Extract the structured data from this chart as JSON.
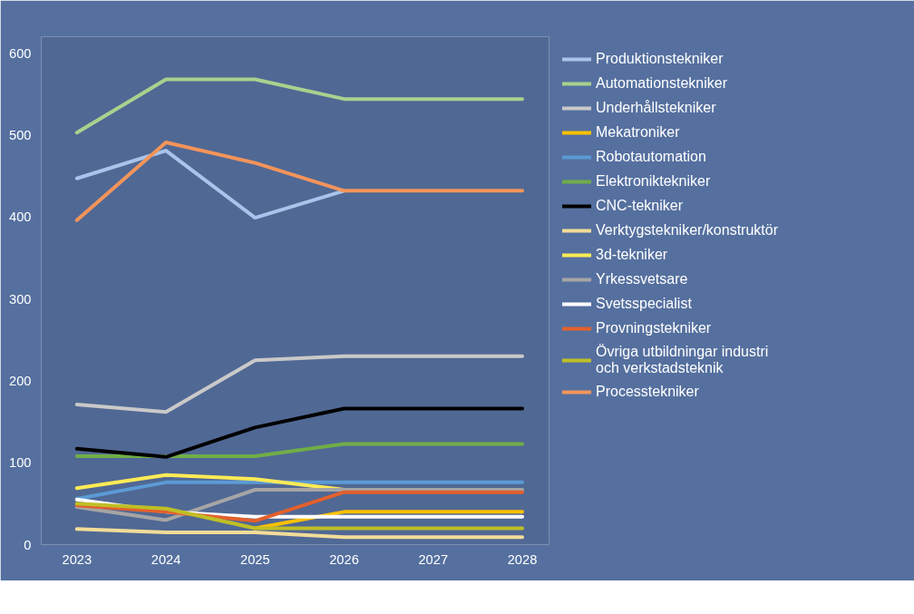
{
  "chart_data": {
    "type": "line",
    "x": [
      2023,
      2024,
      2025,
      2026,
      2027,
      2028
    ],
    "xlim": [
      2022.6,
      2028.3
    ],
    "xticks": [
      2023,
      2024,
      2025,
      2026,
      2027,
      2028
    ],
    "ylim": [
      0,
      620
    ],
    "yticks": [
      0,
      100,
      200,
      300,
      400,
      500,
      600
    ],
    "grid": false,
    "legend": "right",
    "marker": "none",
    "line_style": "solid",
    "series": [
      {
        "name": "Produktionstekniker",
        "color": "#a9c4eb",
        "values": [
          447,
          481,
          399,
          432,
          null,
          null
        ]
      },
      {
        "name": "Automationstekniker",
        "color": "#a9d18e",
        "values": [
          503,
          568,
          568,
          544,
          544,
          544
        ]
      },
      {
        "name": "Underhållstekniker",
        "color": "#c9c9c9",
        "values": [
          171,
          162,
          225,
          230,
          230,
          230
        ]
      },
      {
        "name": "Mekatroniker",
        "color": "#ffc000",
        "values": [
          null,
          null,
          20,
          40,
          40,
          40
        ]
      },
      {
        "name": "Robotautomation",
        "color": "#5b9bd5",
        "values": [
          56,
          76,
          76,
          76,
          76,
          76
        ]
      },
      {
        "name": "Elektroniktekniker",
        "color": "#70ad47",
        "values": [
          108,
          108,
          108,
          123,
          123,
          123
        ]
      },
      {
        "name": "CNC-tekniker",
        "color": "#000000",
        "values": [
          117,
          107,
          143,
          166,
          166,
          166
        ]
      },
      {
        "name": "Verktygstekniker/konstruktör",
        "color": "#f2dc99",
        "values": [
          19,
          15,
          15,
          9,
          9,
          9
        ]
      },
      {
        "name": "3d-tekniker",
        "color": "#ffeb55",
        "values": [
          69,
          85,
          80,
          67,
          null,
          null
        ]
      },
      {
        "name": "Yrkessvetsare",
        "color": "#a5a5a5",
        "values": [
          46,
          30,
          67,
          67,
          67,
          67
        ]
      },
      {
        "name": "Svetsspecialist",
        "color": "#ffffff",
        "values": [
          55,
          40,
          34,
          34,
          34,
          34
        ]
      },
      {
        "name": "Provningstekniker",
        "color": "#e3602c",
        "values": [
          48,
          40,
          29,
          64,
          64,
          64
        ]
      },
      {
        "name": "Övriga utbildningar industri\noch verkstadsteknik",
        "color": "#bfbf26",
        "values": [
          50,
          44,
          20,
          20,
          20,
          20
        ]
      },
      {
        "name": "Processtekniker",
        "color": "#f4945a",
        "values": [
          396,
          491,
          466,
          432,
          432,
          432
        ]
      }
    ]
  }
}
